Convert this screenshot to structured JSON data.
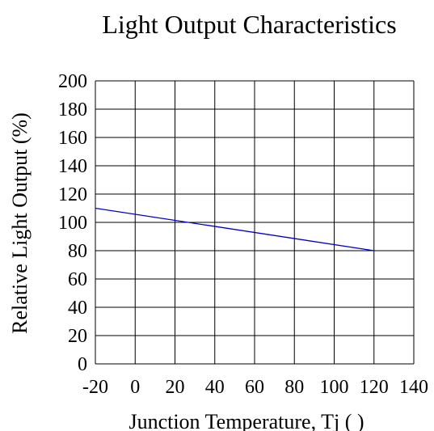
{
  "chart_data": {
    "type": "line",
    "title": "Light Output Characteristics",
    "xlabel": "Junction Temperature, Tj (   )",
    "ylabel": "Relative Light Output (%)",
    "xlim": [
      -20,
      140
    ],
    "ylim": [
      0,
      200
    ],
    "x_ticks": [
      "-20",
      "0",
      "20",
      "40",
      "60",
      "80",
      "100",
      "120",
      "140"
    ],
    "y_ticks": [
      "200",
      "180",
      "160",
      "140",
      "120",
      "100",
      "80",
      "60",
      "40",
      "20",
      "0"
    ],
    "grid": true,
    "series": [
      {
        "color": "#0000cc",
        "x": [
          -20,
          120
        ],
        "y": [
          110,
          80
        ]
      }
    ]
  }
}
